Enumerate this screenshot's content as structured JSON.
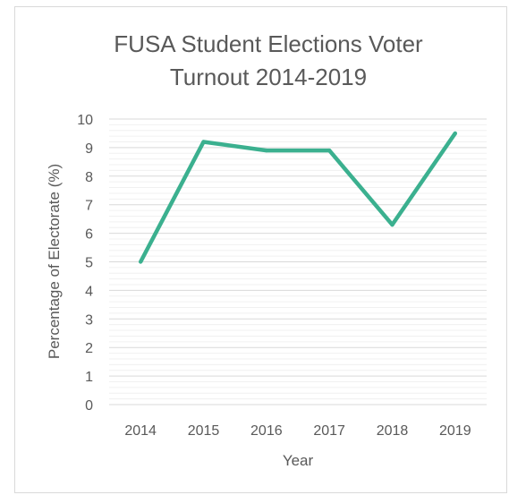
{
  "chart_data": {
    "type": "line",
    "title": "FUSA Student Elections Voter Turnout 2014-2019",
    "title_lines": [
      "FUSA Student Elections Voter",
      "Turnout 2014-2019"
    ],
    "xlabel": "Year",
    "ylabel": "Percentage of Electorate (%)",
    "categories": [
      "2014",
      "2015",
      "2016",
      "2017",
      "2018",
      "2019"
    ],
    "series": [
      {
        "values": [
          5.0,
          9.2,
          8.9,
          8.9,
          6.3,
          9.5
        ],
        "color": "#3bb08f"
      }
    ],
    "ylim": [
      0,
      10
    ],
    "yticks": [
      "0",
      "1",
      "2",
      "3",
      "4",
      "5",
      "6",
      "7",
      "8",
      "9",
      "10"
    ],
    "grid": true,
    "minor_grid": true,
    "legend": "none"
  }
}
